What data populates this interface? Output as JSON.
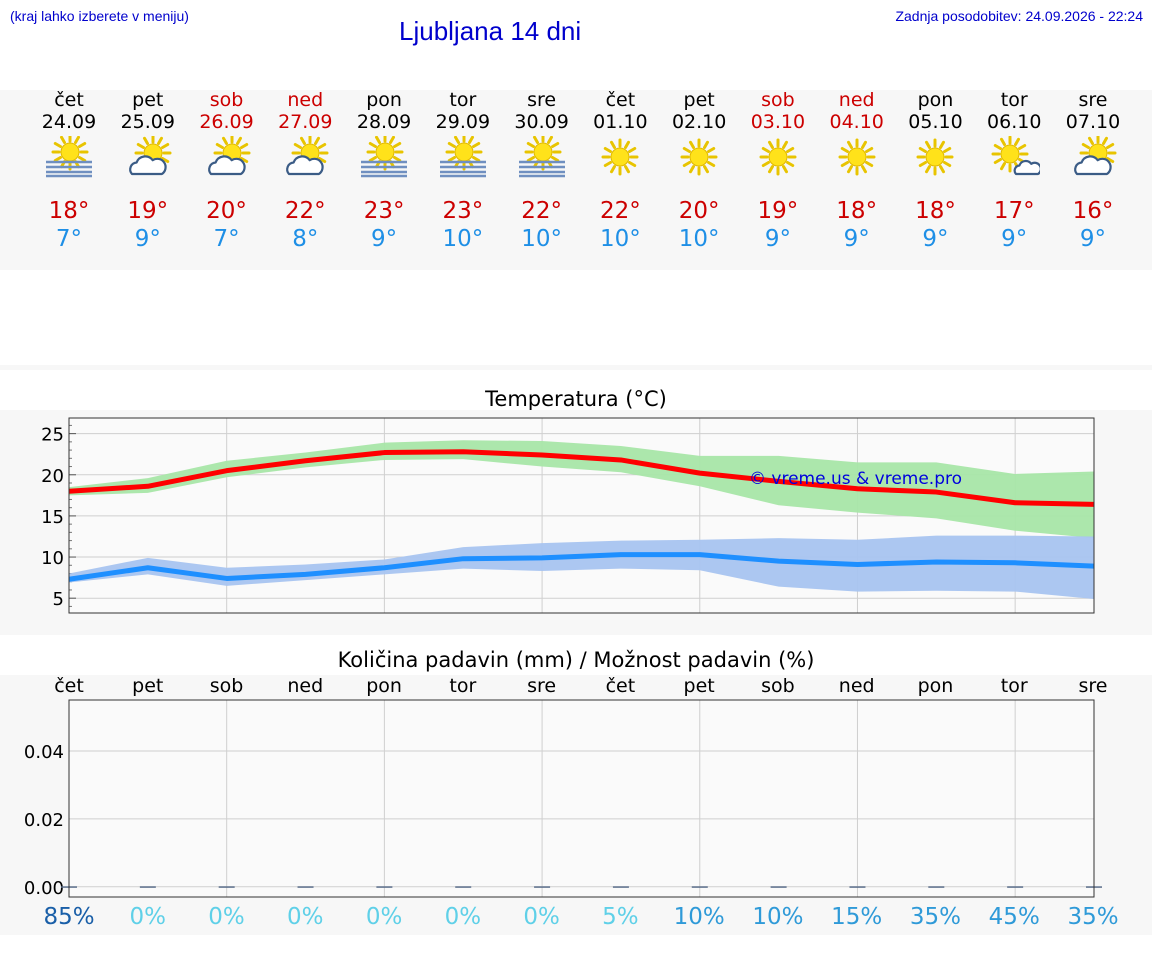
{
  "header": {
    "hint": "(kraj lahko izberete v meniju)",
    "title": "Ljubljana 14 dni",
    "updated": "Zadnja posodobitev: 24.09.2026 - 22:24"
  },
  "days": [
    {
      "name": "čet",
      "date": "24.09",
      "weekend": false,
      "icon": "sun-fog-icon",
      "max": "18°",
      "min": "7°",
      "precip_pct": "85%",
      "pct_color": "#1a5fa8"
    },
    {
      "name": "pet",
      "date": "25.09",
      "weekend": false,
      "icon": "sun-cloud-icon",
      "max": "19°",
      "min": "9°",
      "precip_pct": "0%",
      "pct_color": "#5fd0e8"
    },
    {
      "name": "sob",
      "date": "26.09",
      "weekend": true,
      "icon": "sun-cloud-icon",
      "max": "20°",
      "min": "7°",
      "precip_pct": "0%",
      "pct_color": "#5fd0e8"
    },
    {
      "name": "ned",
      "date": "27.09",
      "weekend": true,
      "icon": "sun-cloud-icon",
      "max": "22°",
      "min": "8°",
      "precip_pct": "0%",
      "pct_color": "#5fd0e8"
    },
    {
      "name": "pon",
      "date": "28.09",
      "weekend": false,
      "icon": "sun-fog-icon",
      "max": "23°",
      "min": "9°",
      "precip_pct": "0%",
      "pct_color": "#5fd0e8"
    },
    {
      "name": "tor",
      "date": "29.09",
      "weekend": false,
      "icon": "sun-fog-icon",
      "max": "23°",
      "min": "10°",
      "precip_pct": "0%",
      "pct_color": "#5fd0e8"
    },
    {
      "name": "sre",
      "date": "30.09",
      "weekend": false,
      "icon": "sun-fog-icon",
      "max": "22°",
      "min": "10°",
      "precip_pct": "0%",
      "pct_color": "#5fd0e8"
    },
    {
      "name": "čet",
      "date": "01.10",
      "weekend": false,
      "icon": "sun-icon",
      "max": "22°",
      "min": "10°",
      "precip_pct": "5%",
      "pct_color": "#5fd0e8"
    },
    {
      "name": "pet",
      "date": "02.10",
      "weekend": false,
      "icon": "sun-icon",
      "max": "20°",
      "min": "10°",
      "precip_pct": "10%",
      "pct_color": "#2f9ad8"
    },
    {
      "name": "sob",
      "date": "03.10",
      "weekend": true,
      "icon": "sun-icon",
      "max": "19°",
      "min": "9°",
      "precip_pct": "10%",
      "pct_color": "#2f9ad8"
    },
    {
      "name": "ned",
      "date": "04.10",
      "weekend": true,
      "icon": "sun-icon",
      "max": "18°",
      "min": "9°",
      "precip_pct": "15%",
      "pct_color": "#2f9ad8"
    },
    {
      "name": "pon",
      "date": "05.10",
      "weekend": false,
      "icon": "sun-icon",
      "max": "18°",
      "min": "9°",
      "precip_pct": "35%",
      "pct_color": "#2f9ad8"
    },
    {
      "name": "tor",
      "date": "06.10",
      "weekend": false,
      "icon": "sun-small-cloud-icon",
      "max": "17°",
      "min": "9°",
      "precip_pct": "45%",
      "pct_color": "#2f9ad8"
    },
    {
      "name": "sre",
      "date": "07.10",
      "weekend": false,
      "icon": "sun-cloud-icon",
      "max": "16°",
      "min": "9°",
      "precip_pct": "35%",
      "pct_color": "#2f9ad8"
    }
  ],
  "chart_data": [
    {
      "type": "line",
      "title": "Temperatura (°C)",
      "x": [
        "čet",
        "pet",
        "sob",
        "ned",
        "pon",
        "tor",
        "sre",
        "čet",
        "pet",
        "sob",
        "ned",
        "pon",
        "tor",
        "sre"
      ],
      "ylim": [
        3.2,
        26.9
      ],
      "yticks": [
        5,
        10,
        15,
        20,
        25
      ],
      "grid": true,
      "watermark": "© vreme.us & vreme.pro",
      "series": [
        {
          "values": [
            18.0,
            18.6,
            20.5,
            21.7,
            22.7,
            22.8,
            22.4,
            21.8,
            20.2,
            19.2,
            18.3,
            17.9,
            16.6,
            16.4
          ],
          "color": "#ff0000",
          "band_low": [
            17.5,
            17.8,
            19.7,
            20.9,
            21.8,
            21.9,
            21.0,
            20.3,
            18.6,
            16.3,
            15.4,
            14.7,
            13.2,
            12.3
          ],
          "band_high": [
            18.5,
            19.6,
            21.7,
            22.7,
            23.9,
            24.2,
            24.1,
            23.5,
            22.3,
            22.3,
            21.5,
            21.5,
            20.1,
            20.4
          ],
          "band_color": "#a8e6a8"
        },
        {
          "values": [
            7.3,
            8.7,
            7.4,
            7.9,
            8.7,
            9.8,
            9.9,
            10.3,
            10.3,
            9.5,
            9.1,
            9.4,
            9.3,
            8.9
          ],
          "color": "#1e8fff",
          "band_low": [
            6.9,
            7.9,
            6.5,
            7.2,
            7.9,
            8.6,
            8.3,
            8.6,
            8.4,
            6.4,
            5.8,
            5.9,
            5.8,
            4.9
          ],
          "band_high": [
            8.0,
            9.9,
            8.7,
            9.1,
            9.7,
            11.2,
            11.7,
            12.0,
            12.1,
            12.3,
            12.1,
            12.6,
            12.6,
            12.5
          ],
          "band_color": "#a8c4f0"
        }
      ]
    },
    {
      "type": "bar",
      "title": "Količina padavin (mm) / Možnost padavin (%)",
      "categories": [
        "čet",
        "pet",
        "sob",
        "ned",
        "pon",
        "tor",
        "sre",
        "čet",
        "pet",
        "sob",
        "ned",
        "pon",
        "tor",
        "sre"
      ],
      "values": [
        0,
        0,
        0,
        0,
        0,
        0,
        0,
        0,
        0,
        0,
        0,
        0,
        0,
        0
      ],
      "ylim": [
        -0.003,
        0.055
      ],
      "yticks": [
        "0.00",
        "0.02",
        "0.04"
      ],
      "grid": true
    }
  ]
}
